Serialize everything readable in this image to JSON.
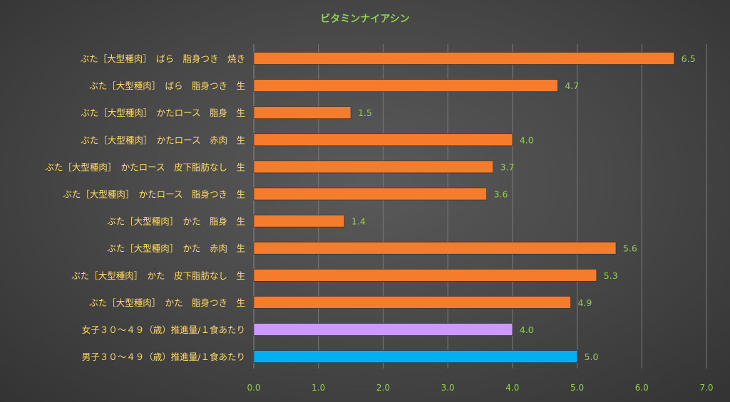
{
  "chart_data": {
    "type": "bar",
    "orientation": "horizontal",
    "title": "ビタミンナイアシン",
    "xlim": [
      0,
      7.0
    ],
    "ticks": [
      "0.0",
      "1.0",
      "2.0",
      "3.0",
      "4.0",
      "5.0",
      "6.0",
      "7.0"
    ],
    "grid": true,
    "categories": [
      "ぶた［大型種肉］　ばら　脂身つき　焼き",
      "ぶた［大型種肉］　ばら　脂身つき　生",
      "ぶた［大型種肉］　かたロース　脂身　生",
      "ぶた［大型種肉］　かたロース　赤肉　生",
      "ぶた［大型種肉］　かたロース　皮下脂肪なし　生",
      "ぶた［大型種肉］　かたロース　脂身つき　生",
      "ぶた［大型種肉］　かた　脂身　生",
      "ぶた［大型種肉］　かた　赤肉　生",
      "ぶた［大型種肉］　かた　皮下脂肪なし　生",
      "ぶた［大型種肉］　かた　脂身つき　生",
      "女子３０～４９（歳）推進量/１食あたり",
      "男子３０～４９（歳）推進量/１食あたり"
    ],
    "values": [
      6.5,
      4.7,
      1.5,
      4.0,
      3.7,
      3.6,
      1.4,
      5.6,
      5.3,
      4.9,
      4.0,
      5.0
    ],
    "value_labels": [
      "6.5",
      "4.7",
      "1.5",
      "4.0",
      "3.7",
      "3.6",
      "1.4",
      "5.6",
      "5.3",
      "4.9",
      "4.0",
      "5.0"
    ],
    "colors": [
      "#f47c2c",
      "#f47c2c",
      "#f47c2c",
      "#f47c2c",
      "#f47c2c",
      "#f47c2c",
      "#f47c2c",
      "#f47c2c",
      "#f47c2c",
      "#f47c2c",
      "#cc99ff",
      "#00b0f0"
    ],
    "title_color": "#92d050",
    "label_color": "#ffd966",
    "tick_color": "#92d050",
    "value_label_color": "#92d050"
  }
}
